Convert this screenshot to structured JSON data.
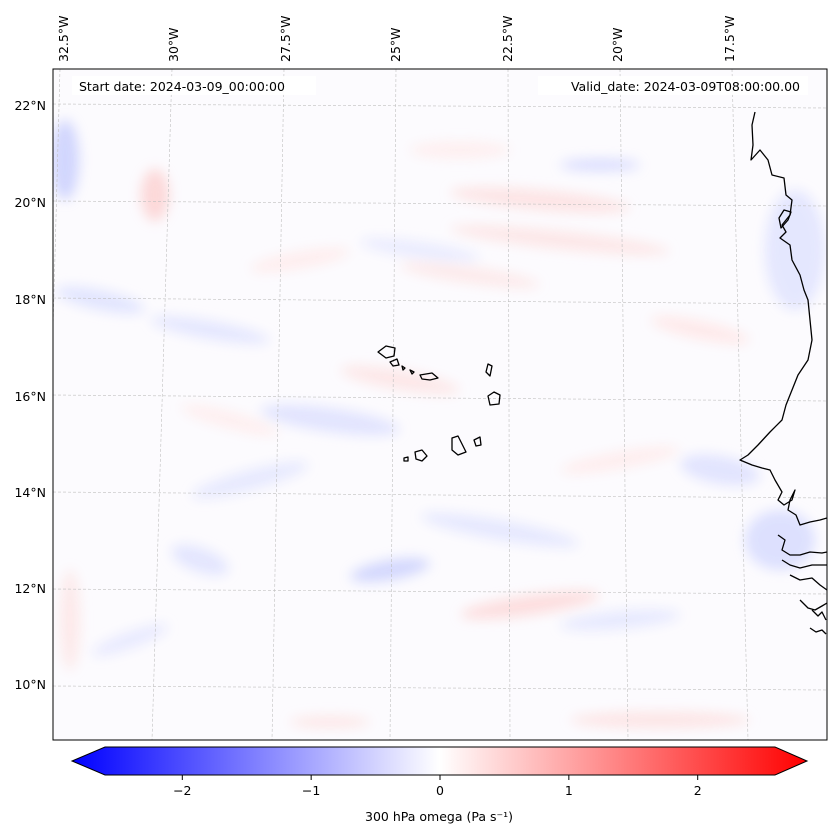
{
  "map": {
    "start_date": "Start date: 2024-03-09_00:00:00",
    "valid_date": "Valid_date: 2024-03-09T08:00:00.00",
    "lon_labels": [
      "32.5°W",
      "30°W",
      "27.5°W",
      "25°W",
      "22.5°W",
      "20°W",
      "17.5°W"
    ],
    "lat_labels": [
      "22°N",
      "20°N",
      "18°N",
      "16°N",
      "14°N",
      "12°N",
      "10°N"
    ]
  },
  "colorbar": {
    "label": "300 hPa omega (Pa s⁻¹)",
    "range": [
      -2.6,
      2.6
    ],
    "ticks": [
      {
        "value": -2,
        "label": "−2"
      },
      {
        "value": -1,
        "label": "−1"
      },
      {
        "value": 0,
        "label": "0"
      },
      {
        "value": 1,
        "label": "1"
      },
      {
        "value": 2,
        "label": "2"
      }
    ],
    "colors": {
      "min": "#0000ff",
      "mid": "#ffffff",
      "max": "#ff0000"
    }
  }
}
